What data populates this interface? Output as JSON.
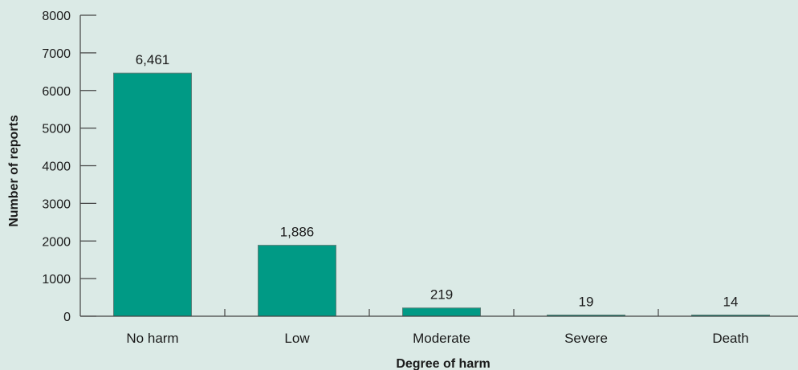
{
  "chart_data": {
    "type": "bar",
    "categories": [
      "No harm",
      "Low",
      "Moderate",
      "Severe",
      "Death"
    ],
    "values": [
      6461,
      1886,
      219,
      19,
      14
    ],
    "data_labels": [
      "6,461",
      "1,886",
      "219",
      "19",
      "14"
    ],
    "title": "",
    "xlabel": "Degree of harm",
    "ylabel": "Number of reports",
    "ylim": [
      0,
      8000
    ],
    "yticks": [
      0,
      1000,
      2000,
      3000,
      4000,
      5000,
      6000,
      7000,
      8000
    ],
    "grid": false,
    "legend": "none"
  },
  "colors": {
    "background": "#dbeae6",
    "bar_fill": "#009a85",
    "bar_edge": "#5a7f78",
    "axis": "#444444"
  }
}
